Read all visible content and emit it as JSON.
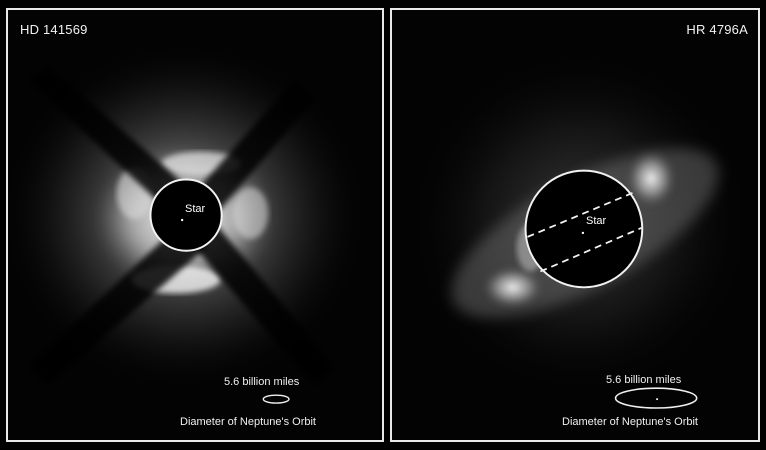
{
  "panels": {
    "left": {
      "title": "HD 141569",
      "star_label": "Star",
      "scale_text": "5.6 billion miles",
      "caption": "Diameter of Neptune's Orbit"
    },
    "right": {
      "title": "HR 4796A",
      "star_label": "Star",
      "scale_text": "5.6 billion miles",
      "caption": "Diameter of Neptune's Orbit"
    }
  },
  "colors": {
    "background": "#000000",
    "border": "#e8e8e8",
    "text": "#f0f0f0"
  }
}
